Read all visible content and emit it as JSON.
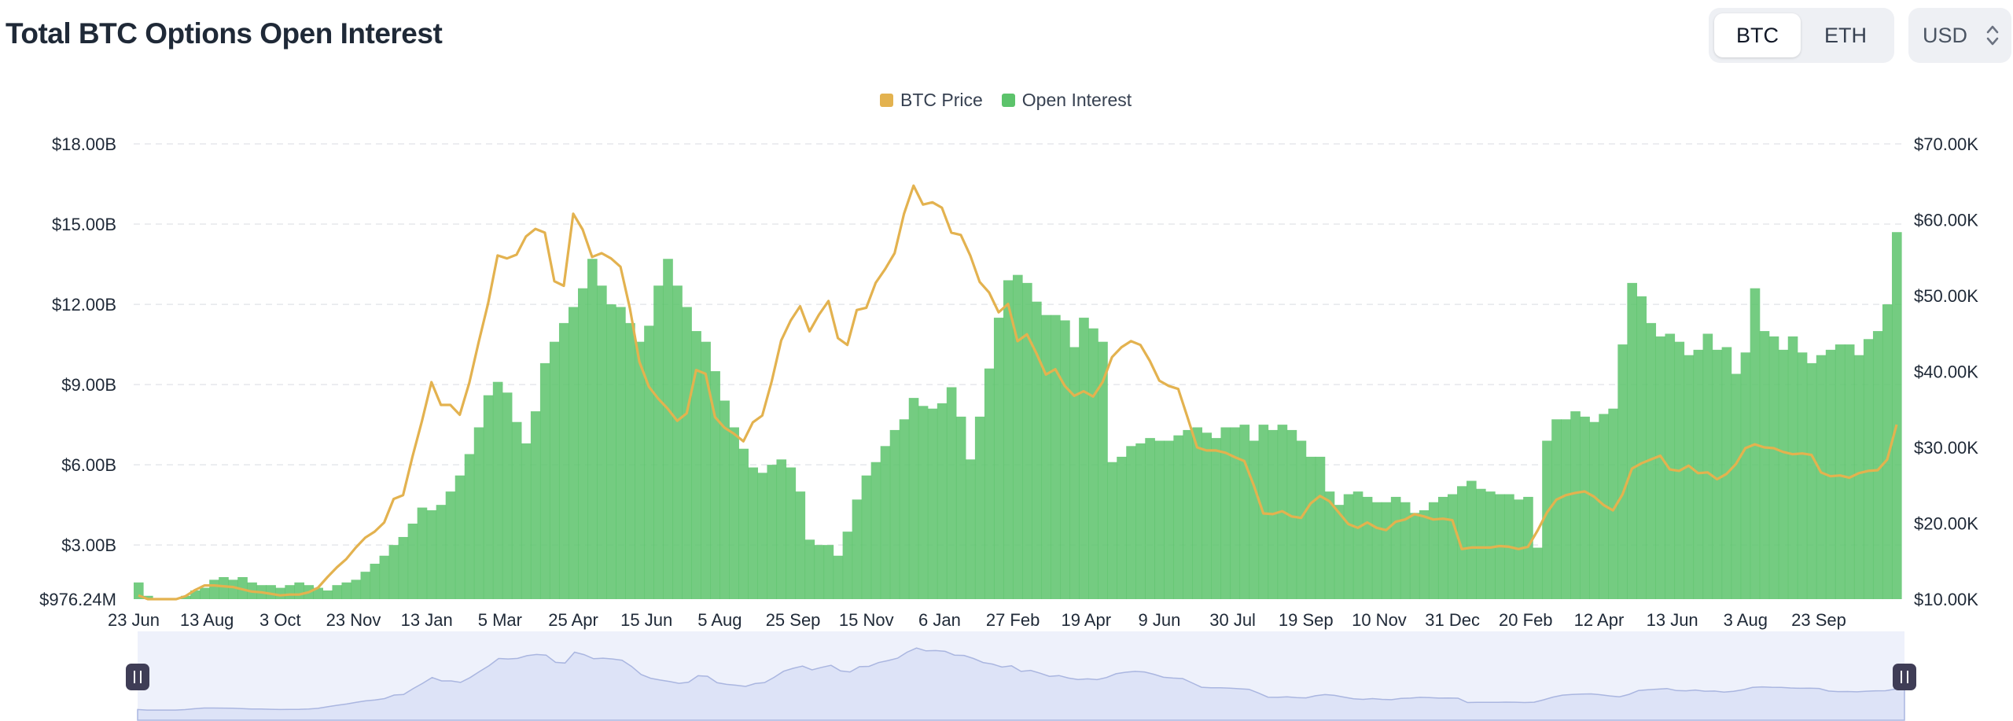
{
  "header": {
    "title": "Total BTC Options Open Interest",
    "asset_toggle": {
      "active": "BTC",
      "other": "ETH"
    },
    "currency_select": {
      "value": "USD",
      "icon": "chevron-up-down-icon"
    }
  },
  "colors": {
    "btc_price": "#e3b24f",
    "open_interest": "#5cc36b",
    "navigator_fill": "#dde3f7",
    "navigator_line": "#aab6e0",
    "grid": "#e5e7eb"
  },
  "chart_data": {
    "type": "bar",
    "title": "",
    "legend": {
      "placement": "top-center",
      "entries": [
        "BTC Price",
        "Open Interest"
      ]
    },
    "grid": "horizontal dashed",
    "x_ticks": [
      "23 Jun",
      "13 Aug",
      "3 Oct",
      "23 Nov",
      "13 Jan",
      "5 Mar",
      "25 Apr",
      "15 Jun",
      "5 Aug",
      "25 Sep",
      "15 Nov",
      "6 Jan",
      "27 Feb",
      "19 Apr",
      "9 Jun",
      "30 Jul",
      "19 Sep",
      "10 Nov",
      "31 Dec",
      "20 Feb",
      "12 Apr",
      "13 Jun",
      "3 Aug",
      "23 Sep"
    ],
    "left_axis": {
      "ticks": [
        "$976.24M",
        "$3.00B",
        "$6.00B",
        "$9.00B",
        "$12.00B",
        "$15.00B",
        "$18.00B"
      ],
      "range_billion_usd": [
        0.97624,
        18
      ]
    },
    "right_axis": {
      "ticks": [
        "$10.00K",
        "$20.00K",
        "$30.00K",
        "$40.00K",
        "$50.00K",
        "$60.00K",
        "$70.00K"
      ],
      "range_thousand_usd": [
        10,
        70
      ]
    },
    "series": [
      {
        "name": "Open Interest",
        "kind": "bar",
        "unit": "billion USD",
        "values": [
          1.6,
          1.1,
          1.0,
          1.0,
          1.0,
          1.1,
          1.3,
          1.4,
          1.7,
          1.8,
          1.7,
          1.8,
          1.6,
          1.5,
          1.5,
          1.4,
          1.5,
          1.6,
          1.5,
          1.4,
          1.3,
          1.5,
          1.6,
          1.7,
          2.0,
          2.3,
          2.6,
          3.0,
          3.3,
          3.8,
          4.4,
          4.3,
          4.5,
          5.0,
          5.6,
          6.4,
          7.4,
          8.6,
          9.1,
          8.7,
          7.6,
          6.8,
          8.0,
          9.8,
          10.6,
          11.3,
          11.9,
          12.6,
          13.7,
          12.7,
          12.0,
          11.9,
          11.3,
          10.6,
          11.2,
          12.7,
          13.7,
          12.7,
          11.9,
          11.0,
          10.6,
          9.5,
          8.4,
          7.4,
          6.6,
          5.9,
          5.7,
          6.0,
          6.2,
          5.9,
          5.0,
          3.2,
          3.0,
          3.0,
          2.6,
          3.5,
          4.7,
          5.6,
          6.1,
          6.7,
          7.3,
          7.7,
          8.5,
          8.2,
          8.1,
          8.3,
          8.9,
          7.8,
          6.2,
          7.8,
          9.6,
          11.5,
          12.9,
          13.1,
          12.8,
          12.1,
          11.6,
          11.6,
          11.4,
          10.4,
          11.5,
          11.1,
          10.6,
          6.1,
          6.3,
          6.7,
          6.8,
          7.0,
          6.9,
          6.9,
          7.1,
          7.3,
          7.4,
          7.2,
          7.0,
          7.4,
          7.4,
          7.5,
          6.9,
          7.5,
          7.3,
          7.5,
          7.3,
          6.9,
          6.3,
          6.3,
          5.0,
          4.5,
          4.9,
          5.0,
          4.8,
          4.6,
          4.6,
          4.8,
          4.6,
          4.2,
          4.3,
          4.6,
          4.8,
          4.9,
          5.2,
          5.4,
          5.1,
          5.0,
          4.9,
          4.9,
          4.7,
          4.8,
          2.9,
          6.9,
          7.7,
          7.7,
          8.0,
          7.8,
          7.6,
          7.9,
          8.1,
          10.5,
          12.8,
          12.3,
          11.3,
          10.8,
          10.9,
          10.6,
          10.1,
          10.3,
          10.9,
          10.3,
          10.4,
          9.4,
          10.2,
          12.6,
          11.0,
          10.8,
          10.3,
          10.8,
          10.2,
          9.8,
          10.1,
          10.3,
          10.5,
          10.5,
          10.1,
          10.7,
          11.0,
          12.0,
          14.7
        ]
      },
      {
        "name": "BTC Price",
        "kind": "line",
        "unit": "thousand USD",
        "values": [
          10.5,
          10.0,
          10.0,
          10.0,
          10.0,
          10.4,
          11.2,
          11.8,
          11.8,
          11.7,
          11.6,
          11.3,
          11.0,
          10.9,
          10.7,
          10.5,
          10.6,
          10.6,
          10.9,
          11.5,
          12.9,
          14.2,
          15.3,
          16.8,
          18.1,
          18.9,
          20.1,
          23.2,
          23.7,
          28.8,
          33.5,
          38.6,
          35.6,
          35.6,
          34.3,
          38.5,
          43.9,
          49.0,
          55.3,
          54.9,
          55.4,
          57.8,
          58.8,
          58.3,
          51.9,
          51.3,
          60.8,
          58.7,
          55.1,
          55.6,
          54.9,
          53.8,
          48.3,
          41.3,
          38.0,
          36.4,
          35.1,
          33.5,
          34.5,
          40.2,
          39.7,
          34.0,
          32.6,
          31.8,
          30.8,
          33.3,
          34.2,
          38.7,
          44.1,
          46.7,
          48.6,
          45.3,
          47.5,
          49.3,
          44.4,
          43.5,
          48.1,
          48.4,
          51.7,
          53.5,
          55.6,
          60.8,
          64.5,
          62.0,
          62.3,
          61.6,
          58.3,
          58.0,
          55.3,
          51.8,
          50.4,
          47.8,
          48.9,
          44.0,
          44.9,
          42.4,
          39.6,
          40.3,
          38.1,
          36.8,
          37.4,
          36.7,
          38.6,
          41.9,
          43.2,
          44.0,
          43.5,
          41.4,
          38.8,
          38.1,
          37.7,
          33.9,
          30.0,
          29.6,
          29.6,
          29.3,
          28.7,
          28.2,
          25.0,
          21.3,
          21.2,
          21.6,
          20.9,
          20.7,
          22.6,
          23.6,
          22.9,
          21.4,
          19.9,
          19.4,
          20.1,
          19.4,
          19.1,
          20.2,
          20.5,
          21.2,
          20.9,
          20.5,
          20.6,
          20.4,
          16.6,
          16.8,
          16.8,
          16.8,
          17.0,
          16.9,
          16.6,
          16.9,
          19.0,
          21.4,
          23.1,
          23.7,
          24.0,
          24.2,
          23.5,
          22.4,
          21.7,
          23.8,
          27.2,
          27.9,
          28.4,
          28.9,
          27.1,
          26.9,
          27.6,
          26.6,
          26.7,
          25.8,
          26.5,
          27.8,
          29.9,
          30.4,
          30.0,
          29.9,
          29.4,
          29.1,
          29.2,
          29.0,
          26.7,
          26.2,
          26.3,
          26.0,
          26.6,
          26.9,
          27.0,
          28.4,
          33.0
        ]
      }
    ],
    "navigator": {
      "series": "BTC Price",
      "range": "full"
    }
  }
}
